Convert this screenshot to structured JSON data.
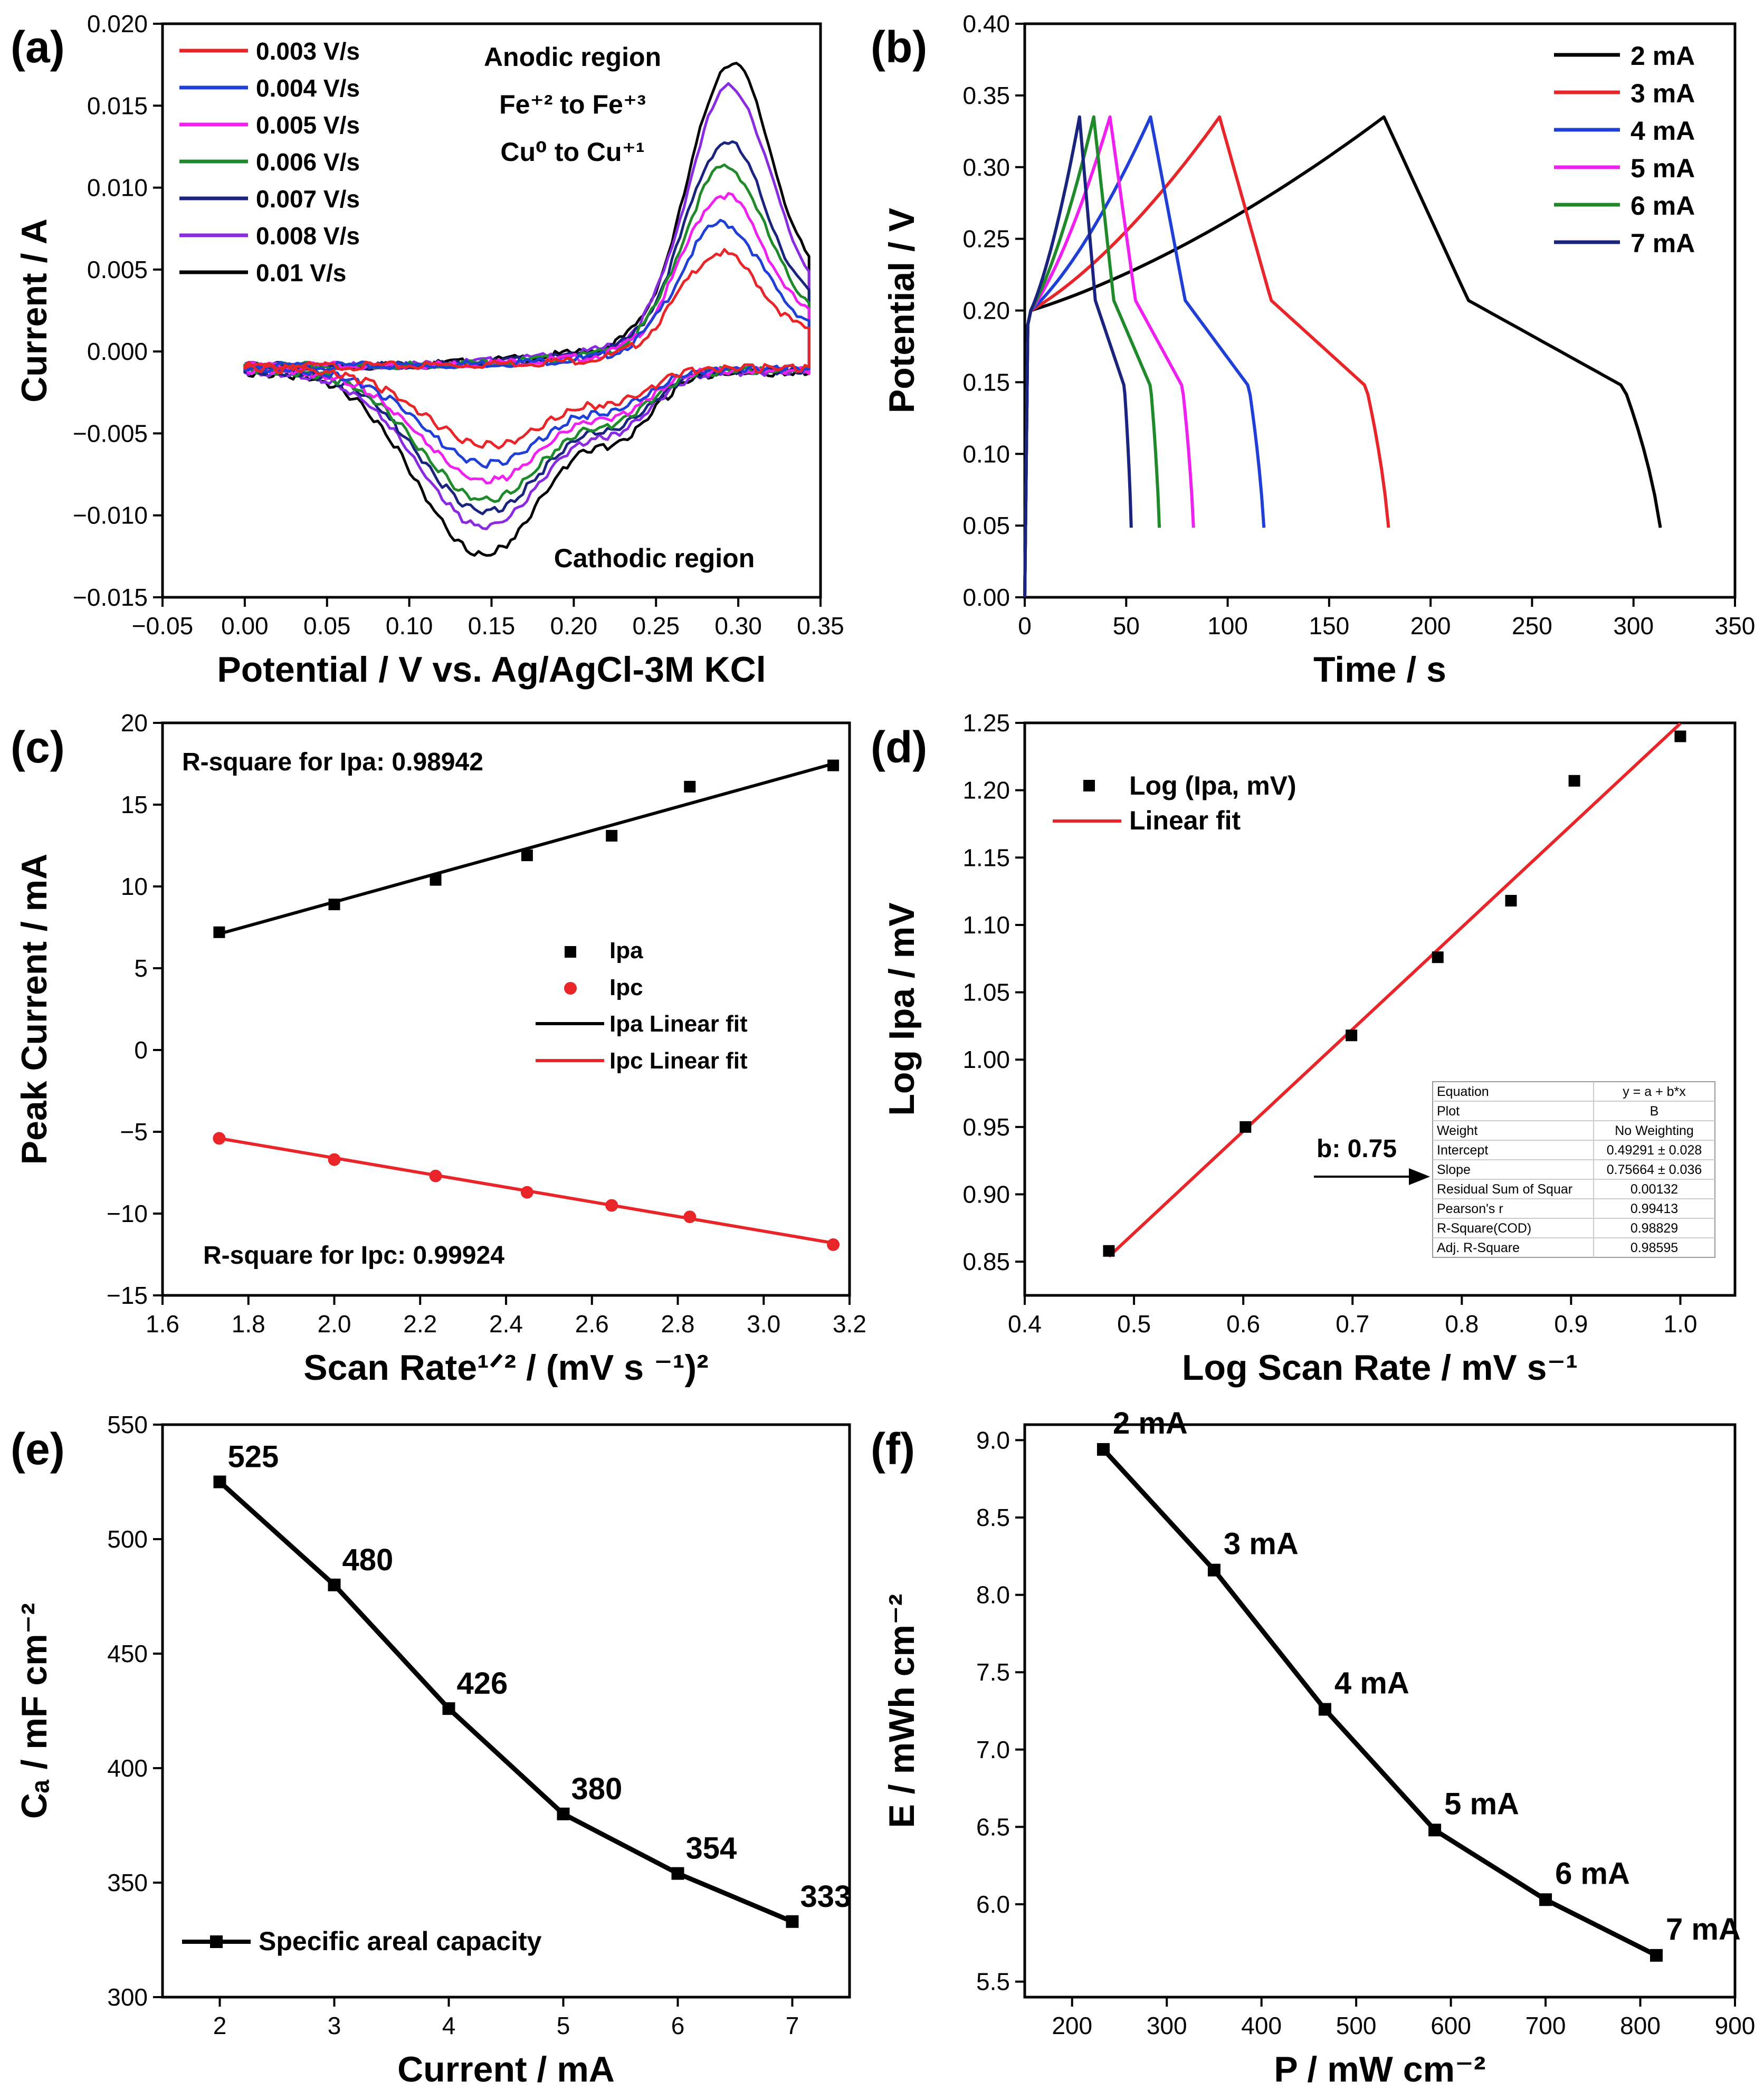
{
  "figure": {
    "panel_count": 6
  },
  "chart_data": [
    {
      "panel": "(a)",
      "type": "line",
      "xlabel": "Potential / V vs. Ag/AgCl-3M KCl",
      "ylabel": "Current / A",
      "xlim": [
        -0.05,
        0.35
      ],
      "ylim": [
        -0.015,
        0.02
      ],
      "xticks": [
        -0.05,
        0.0,
        0.05,
        0.1,
        0.15,
        0.2,
        0.25,
        0.3,
        0.35
      ],
      "xtick_labels": [
        "−0.05",
        "0.00",
        "0.05",
        "0.10",
        "0.15",
        "0.20",
        "0.25",
        "0.30",
        "0.35"
      ],
      "yticks": [
        -0.015,
        -0.01,
        -0.005,
        0.0,
        0.005,
        0.01,
        0.015,
        0.02
      ],
      "ytick_labels": [
        "−0.015",
        "−0.010",
        "−0.005",
        "0.000",
        "0.005",
        "0.010",
        "0.015",
        "0.020"
      ],
      "annotations": [
        {
          "text": "Anodic region",
          "x": 0.2,
          "y": 0.0177
        },
        {
          "text": "Fe⁺² to Fe⁺³",
          "x": 0.2,
          "y": 0.0148
        },
        {
          "text": "Cu⁰ to Cu⁺¹",
          "x": 0.2,
          "y": 0.0118
        },
        {
          "text": "Cathodic region",
          "x": 0.2,
          "y": -0.0128
        }
      ],
      "series": [
        {
          "name": "0.003 V/s",
          "color": "#e8262a",
          "ipa": 0.0074,
          "ipc": -0.0055
        },
        {
          "name": "0.004 V/s",
          "color": "#1f3fd6",
          "ipa": 0.009,
          "ipc": -0.0066
        },
        {
          "name": "0.005 V/s",
          "color": "#f020f0",
          "ipa": 0.0105,
          "ipc": -0.0076
        },
        {
          "name": "0.006 V/s",
          "color": "#1f8a2a",
          "ipa": 0.012,
          "ipc": -0.0087
        },
        {
          "name": "0.007 V/s",
          "color": "#1a237e",
          "ipa": 0.0133,
          "ipc": -0.0094
        },
        {
          "name": "0.008 V/s",
          "color": "#8a2be2",
          "ipa": 0.0162,
          "ipc": -0.0103
        },
        {
          "name": "0.01 V/s",
          "color": "#000000",
          "ipa": 0.0175,
          "ipc": -0.0119
        }
      ]
    },
    {
      "panel": "(b)",
      "type": "line",
      "xlabel": "Time / s",
      "ylabel": "Potential / V",
      "xlim": [
        0,
        350
      ],
      "ylim": [
        0,
        0.4
      ],
      "xticks": [
        0,
        50,
        100,
        150,
        200,
        250,
        300,
        350
      ],
      "xtick_labels": [
        "0",
        "50",
        "100",
        "150",
        "200",
        "250",
        "300",
        "350"
      ],
      "yticks": [
        0,
        0.05,
        0.1,
        0.15,
        0.2,
        0.25,
        0.3,
        0.35,
        0.4
      ],
      "ytick_labels": [
        "0.00",
        "0.05",
        "0.10",
        "0.15",
        "0.20",
        "0.25",
        "0.30",
        "0.35",
        "0.40"
      ],
      "series": [
        {
          "name": "2 mA",
          "color": "#000000",
          "t_peak": 177,
          "t_end": 316
        },
        {
          "name": "3 mA",
          "color": "#e8262a",
          "t_peak": 96,
          "t_end": 181
        },
        {
          "name": "4 mA",
          "color": "#1f3fd6",
          "t_peak": 62,
          "t_end": 119
        },
        {
          "name": "5 mA",
          "color": "#f020f0",
          "t_peak": 42,
          "t_end": 84
        },
        {
          "name": "6 mA",
          "color": "#1f8a2a",
          "t_peak": 34,
          "t_end": 67
        },
        {
          "name": "7 mA",
          "color": "#1a237e",
          "t_peak": 27,
          "t_end": 53
        }
      ]
    },
    {
      "panel": "(c)",
      "type": "scatter",
      "xlabel": "Scan Rate¹ᐟ² / (mV s ⁻¹)²",
      "ylabel": "Peak Current / mA",
      "xlim": [
        1.6,
        3.2
      ],
      "ylim": [
        -15,
        20
      ],
      "xticks": [
        1.6,
        1.8,
        2.0,
        2.2,
        2.4,
        2.6,
        2.8,
        3.0,
        3.2
      ],
      "xtick_labels": [
        "1.6",
        "1.8",
        "2.0",
        "2.2",
        "2.4",
        "2.6",
        "2.8",
        "3.0",
        "3.2"
      ],
      "yticks": [
        -15,
        -10,
        -5,
        0,
        5,
        10,
        15,
        20
      ],
      "ytick_labels": [
        "−15",
        "−10",
        "−5",
        "0",
        "5",
        "10",
        "15",
        "20"
      ],
      "x": [
        1.732,
        2.0,
        2.236,
        2.449,
        2.646,
        2.828,
        3.162
      ],
      "series": [
        {
          "name": "Ipa",
          "values": [
            7.2,
            8.9,
            10.4,
            11.9,
            13.1,
            16.1,
            17.4
          ],
          "fit": [
            7.1,
            17.5
          ],
          "marker": "square",
          "color": "#000000"
        },
        {
          "name": "Ipc",
          "values": [
            -5.4,
            -6.7,
            -7.7,
            -8.7,
            -9.5,
            -10.2,
            -11.9
          ],
          "fit": [
            -5.4,
            -11.8
          ],
          "marker": "circle",
          "color": "#e8262a"
        }
      ],
      "legend": [
        "Ipa",
        "Ipc",
        "Ipa Linear fit",
        "Ipc Linear fit"
      ],
      "annotations": [
        "R-square for Ipa: 0.98942",
        "R-square for Ipc: 0.99924"
      ]
    },
    {
      "panel": "(d)",
      "type": "scatter",
      "xlabel": "Log Scan Rate / mV s⁻¹",
      "ylabel": "Log Ipa / mV",
      "xlim": [
        0.4,
        1.05
      ],
      "ylim": [
        0.825,
        1.25
      ],
      "xticks": [
        0.4,
        0.5,
        0.6,
        0.7,
        0.8,
        0.9,
        1.0
      ],
      "xtick_labels": [
        "0.4",
        "0.5",
        "0.6",
        "0.7",
        "0.8",
        "0.9",
        "1.0"
      ],
      "yticks": [
        0.85,
        0.9,
        0.95,
        1.0,
        1.05,
        1.1,
        1.15,
        1.2,
        1.25
      ],
      "ytick_labels": [
        "0.85",
        "0.90",
        "0.95",
        "1.00",
        "1.05",
        "1.10",
        "1.15",
        "1.20",
        "1.25"
      ],
      "x": [
        0.477,
        0.602,
        0.699,
        0.778,
        0.845,
        0.903,
        1.0
      ],
      "y": [
        0.858,
        0.95,
        1.018,
        1.076,
        1.118,
        1.207,
        1.24
      ],
      "fit": {
        "intercept": 0.49291,
        "slope": 0.75664
      },
      "legend": [
        "Log (Ipa, mV)",
        "Linear fit"
      ],
      "annotation": "b: 0.75",
      "fit_table": [
        [
          "Equation",
          "y = a + b*x"
        ],
        [
          "Plot",
          "B"
        ],
        [
          "Weight",
          "No Weighting"
        ],
        [
          "Intercept",
          "0.49291 ± 0.028"
        ],
        [
          "Slope",
          "0.75664 ± 0.036"
        ],
        [
          "Residual Sum of Squar",
          "0.00132"
        ],
        [
          "Pearson's r",
          "0.99413"
        ],
        [
          "R-Square(COD)",
          "0.98829"
        ],
        [
          "Adj. R-Square",
          "0.98595"
        ]
      ]
    },
    {
      "panel": "(e)",
      "type": "line",
      "xlabel": "Current / mA",
      "ylabel": "Cₐ / mF cm⁻²",
      "xlim": [
        1.5,
        7.5
      ],
      "ylim": [
        300,
        550
      ],
      "xticks": [
        2,
        3,
        4,
        5,
        6,
        7
      ],
      "xtick_labels": [
        "2",
        "3",
        "4",
        "5",
        "6",
        "7"
      ],
      "yticks": [
        300,
        350,
        400,
        450,
        500,
        550
      ],
      "ytick_labels": [
        "300",
        "350",
        "400",
        "450",
        "500",
        "550"
      ],
      "x": [
        2,
        3,
        4,
        5,
        6,
        7
      ],
      "values": [
        525,
        480,
        426,
        380,
        354,
        333
      ],
      "labels": [
        "525",
        "480",
        "426",
        "380",
        "354",
        "333"
      ],
      "legend": [
        "Specific areal capacity"
      ]
    },
    {
      "panel": "(f)",
      "type": "line",
      "xlabel": "P / mW cm⁻²",
      "ylabel": "E / mWh cm⁻²",
      "xlim": [
        150,
        900
      ],
      "ylim": [
        5.4,
        9.1
      ],
      "xticks": [
        200,
        300,
        400,
        500,
        600,
        700,
        800,
        900
      ],
      "xtick_labels": [
        "200",
        "300",
        "400",
        "500",
        "600",
        "700",
        "800",
        "900"
      ],
      "yticks": [
        5.5,
        6.0,
        6.5,
        7.0,
        7.5,
        8.0,
        8.5,
        9.0
      ],
      "ytick_labels": [
        "5.5",
        "6.0",
        "6.5",
        "7.0",
        "7.5",
        "8.0",
        "8.5",
        "9.0"
      ],
      "x": [
        233,
        350,
        467,
        583,
        700,
        817
      ],
      "values": [
        8.94,
        8.16,
        7.26,
        6.48,
        6.03,
        5.67
      ],
      "labels": [
        "2 mA",
        "3 mA",
        "4 mA",
        "5 mA",
        "6 mA",
        "7 mA"
      ]
    }
  ]
}
